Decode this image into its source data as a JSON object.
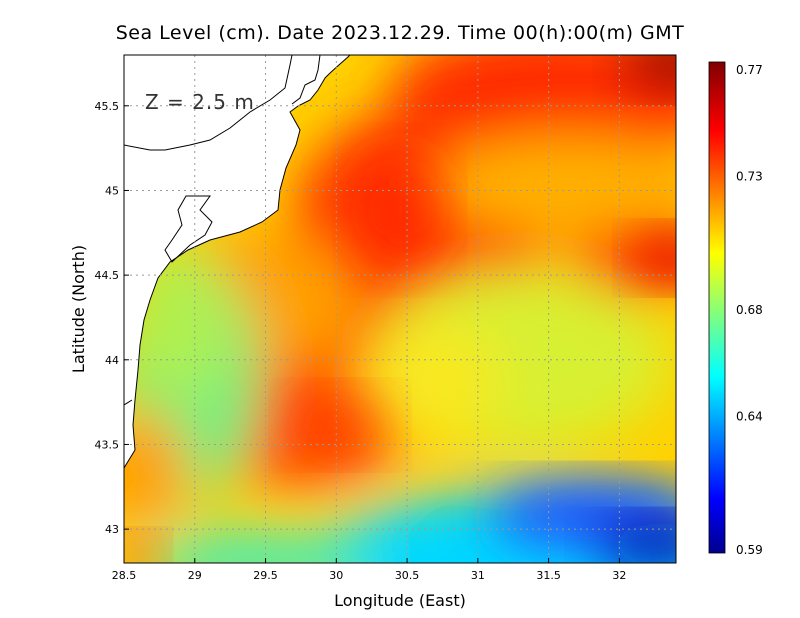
{
  "chart_data": {
    "type": "heatmap",
    "title": "Sea Level (cm). Date 2023.12.29. Time 00(h):00(m) GMT",
    "xlabel": "Longitude (East)",
    "ylabel": "Latitude (North)",
    "xlim": [
      28.5,
      32.4
    ],
    "ylim": [
      42.8,
      45.8
    ],
    "xticks": [
      "28.5",
      "29",
      "29.5",
      "30",
      "30.5",
      "31",
      "31.5",
      "32"
    ],
    "xtick_values": [
      28.5,
      29,
      29.5,
      30,
      30.5,
      31,
      31.5,
      32
    ],
    "yticks": [
      "43",
      "43.5",
      "44",
      "44.5",
      "45",
      "45.5"
    ],
    "ytick_values": [
      43,
      43.5,
      44,
      44.5,
      45,
      45.5
    ],
    "annotation": "Z = 2.5 m",
    "grid": true,
    "colorbar": {
      "labels": [
        "0.77",
        "0.73",
        "0.68",
        "0.64",
        "0.59"
      ],
      "values": [
        0.77,
        0.73,
        0.68,
        0.64,
        0.59
      ],
      "min": 0.59,
      "max": 0.77,
      "colors": [
        "#00008f",
        "#0000ff",
        "#00ffff",
        "#ffff00",
        "#ff0000",
        "#800000"
      ]
    },
    "field_hotspots": [
      {
        "lon": 30.45,
        "lat": 44.85,
        "value": 0.755
      },
      {
        "lon": 31.7,
        "lat": 45.75,
        "value": 0.75
      },
      {
        "lon": 32.3,
        "lat": 45.75,
        "value": 0.77
      },
      {
        "lon": 32.3,
        "lat": 44.6,
        "value": 0.75
      },
      {
        "lon": 29.9,
        "lat": 43.6,
        "value": 0.745
      },
      {
        "lon": 28.6,
        "lat": 42.85,
        "value": 0.73
      },
      {
        "lon": 29.0,
        "lat": 44.0,
        "value": 0.665
      },
      {
        "lon": 31.3,
        "lat": 44.0,
        "value": 0.685
      },
      {
        "lon": 32.2,
        "lat": 43.05,
        "value": 0.6
      },
      {
        "lon": 30.8,
        "lat": 42.9,
        "value": 0.645
      }
    ]
  }
}
